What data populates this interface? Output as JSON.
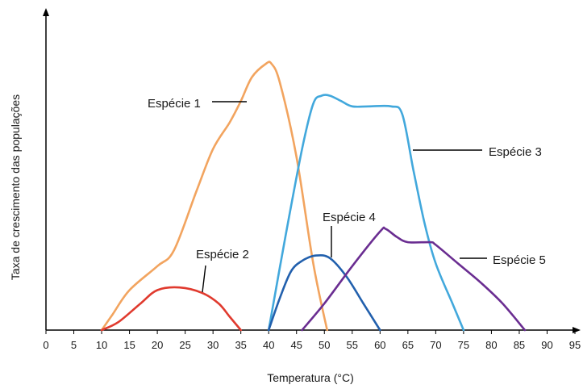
{
  "chart_data": {
    "type": "line",
    "xlabel": "Temperatura (°C)",
    "ylabel": "Taxa de crescimento das populações",
    "xlim": [
      0,
      95
    ],
    "ylim": [
      0,
      100
    ],
    "grid": false,
    "x_ticks": [
      0,
      5,
      10,
      15,
      20,
      25,
      30,
      35,
      40,
      45,
      50,
      55,
      60,
      65,
      70,
      75,
      80,
      85,
      90,
      95
    ],
    "series": [
      {
        "name": "Espécie 1",
        "color": "#f2a45f",
        "x": [
          10,
          12,
          15,
          20,
          23,
          27,
          30,
          33,
          35,
          37,
          39.5,
          40.5,
          42,
          45,
          48,
          50.5
        ],
        "y": [
          0,
          6,
          15,
          24,
          30,
          52,
          68,
          78,
          86,
          95,
          100,
          100,
          93,
          65,
          25,
          0
        ]
      },
      {
        "name": "Espécie 2",
        "color": "#e03a2e",
        "x": [
          10,
          13,
          17,
          20,
          24,
          28,
          31,
          33,
          35
        ],
        "y": [
          0,
          3,
          10,
          15,
          16,
          14,
          10,
          5,
          0
        ]
      },
      {
        "name": "Espécie 3",
        "color": "#42a8dc",
        "x": [
          40,
          43,
          46,
          48,
          49.5,
          51,
          53,
          55,
          58,
          62,
          64,
          66,
          68,
          70,
          73,
          75
        ],
        "y": [
          0,
          35,
          68,
          85,
          88,
          88,
          86,
          84,
          84,
          84,
          81,
          60,
          40,
          25,
          10,
          0
        ]
      },
      {
        "name": "Espécie 4",
        "color": "#2260ad",
        "x": [
          40,
          42,
          44,
          46,
          48.5,
          51,
          54,
          57,
          60
        ],
        "y": [
          0,
          12,
          22,
          26,
          28,
          27,
          20,
          10,
          0
        ]
      },
      {
        "name": "Espécie 5",
        "color": "#6a2d91",
        "x": [
          46,
          50,
          55,
          60,
          61,
          63,
          65,
          69,
          70,
          74,
          78,
          82,
          86
        ],
        "y": [
          0,
          10,
          24,
          37,
          38,
          35,
          33,
          33,
          32,
          25,
          18,
          10,
          0
        ]
      }
    ]
  }
}
